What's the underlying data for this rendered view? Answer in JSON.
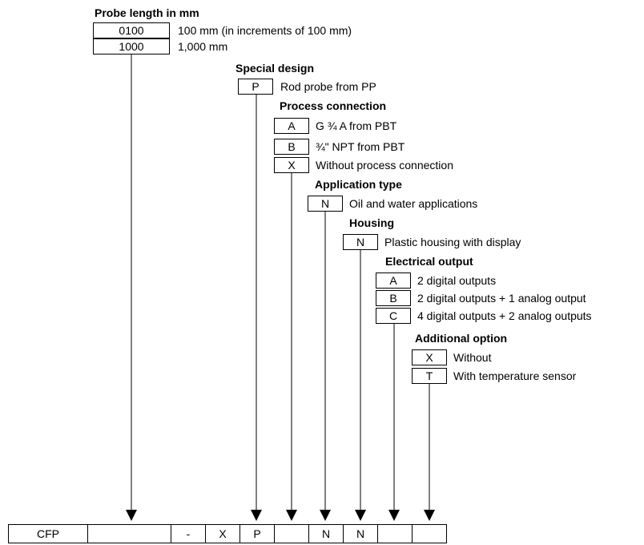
{
  "sections": [
    {
      "title": "Probe length in mm",
      "options": [
        {
          "code": "0100",
          "label": "100 mm (in increments of 100 mm)"
        },
        {
          "code": "1000",
          "label": "1,000 mm"
        }
      ]
    },
    {
      "title": "Special design",
      "options": [
        {
          "code": "P",
          "label": "Rod probe from PP"
        }
      ]
    },
    {
      "title": "Process connection",
      "options": [
        {
          "code": "A",
          "label": "G ¾ A from PBT"
        },
        {
          "code": "B",
          "label": "¾\" NPT from PBT"
        },
        {
          "code": "X",
          "label": "Without process connection"
        }
      ]
    },
    {
      "title": "Application type",
      "options": [
        {
          "code": "N",
          "label": "Oil and water applications"
        }
      ]
    },
    {
      "title": "Housing",
      "options": [
        {
          "code": "N",
          "label": "Plastic housing with display"
        }
      ]
    },
    {
      "title": "Electrical output",
      "options": [
        {
          "code": "A",
          "label": "2 digital outputs"
        },
        {
          "code": "B",
          "label": "2 digital outputs + 1 analog output"
        },
        {
          "code": "C",
          "label": "4 digital outputs + 2 analog outputs"
        }
      ]
    },
    {
      "title": "Additional option",
      "options": [
        {
          "code": "X",
          "label": "Without"
        },
        {
          "code": "T",
          "label": "With temperature sensor"
        }
      ]
    }
  ],
  "typecode": [
    "CFP",
    "",
    "-",
    "X",
    "P",
    "",
    "N",
    "N",
    "",
    ""
  ]
}
